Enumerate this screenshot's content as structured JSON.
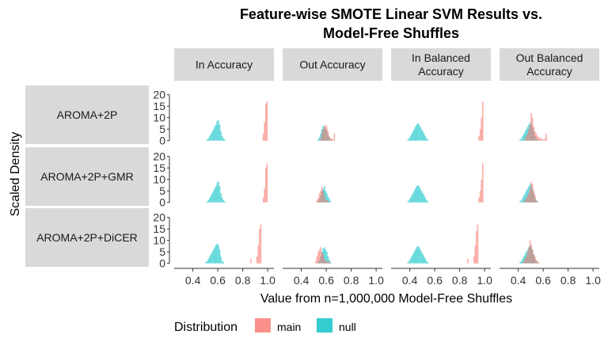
{
  "chart_data": {
    "type": "histogram-facet",
    "title_lines": [
      "Feature-wise SMOTE Linear SVM Results vs.",
      "Model-Free Shuffles"
    ],
    "xlabel": "Value from n=1,000,000 Model-Free Shuffles",
    "ylabel": "Scaled Density",
    "xlim": [
      0.25,
      1.05
    ],
    "ylim": [
      -1.5,
      24
    ],
    "x_ticks": [
      0.4,
      0.6,
      0.8,
      1.0
    ],
    "x_tick_labels": [
      "0.4",
      "0.6",
      "0.8",
      "1.0"
    ],
    "y_ticks": [
      0,
      5,
      10,
      15,
      20
    ],
    "y_tick_labels": [
      "0",
      "5",
      "10",
      "15",
      "20"
    ],
    "columns": [
      {
        "label_lines": [
          "In Accuracy"
        ]
      },
      {
        "label_lines": [
          "Out Accuracy"
        ]
      },
      {
        "label_lines": [
          "In Balanced",
          "Accuracy"
        ]
      },
      {
        "label_lines": [
          "Out Balanced",
          "Accuracy"
        ]
      }
    ],
    "rows": [
      {
        "label": "AROMA+2P"
      },
      {
        "label": "AROMA+2P+GMR"
      },
      {
        "label": "AROMA+2P+DiCER"
      }
    ],
    "legend": {
      "title": "Distribution",
      "position": "bottom",
      "entries": [
        {
          "name": "main",
          "color": "#F8766D"
        },
        {
          "name": "null",
          "color": "#00BFC4"
        }
      ]
    },
    "bin_width": 0.01,
    "panels": [
      [
        {
          "null": {
            "start": 0.51,
            "values": [
              0.5,
              1,
              2,
              3,
              4,
              5,
              6,
              7,
              8.5,
              9,
              7,
              4,
              2,
              1,
              0.5
            ]
          },
          "main": {
            "start": 0.96,
            "values": [
              3,
              8,
              16,
              17
            ]
          }
        },
        {
          "null": {
            "start": 0.53,
            "values": [
              0.5,
              1.5,
              3,
              5,
              6.5,
              6,
              5,
              4.5,
              2.5,
              1.5,
              0.5
            ]
          },
          "main": {
            "start": 0.55,
            "values": [
              1,
              3,
              5,
              6,
              7,
              6,
              4,
              2,
              1,
              1,
              0.5,
              3
            ]
          }
        },
        {
          "null": {
            "start": 0.38,
            "values": [
              0.5,
              1,
              2,
              3,
              4,
              5,
              6,
              7,
              7.5,
              7,
              6,
              5,
              4,
              3,
              2,
              1,
              0.5
            ]
          },
          "main": {
            "start": 0.95,
            "values": [
              2,
              5,
              10,
              17
            ]
          }
        },
        {
          "null": {
            "start": 0.41,
            "values": [
              0.5,
              1,
              2,
              3,
              4,
              5,
              6,
              7,
              8,
              7,
              6,
              4,
              2,
              1,
              0.5
            ]
          },
          "main": {
            "start": 0.45,
            "values": [
              1,
              2,
              3,
              5,
              7,
              12,
              10,
              6,
              4,
              3,
              2,
              1.5,
              1,
              1,
              0.5,
              0.5,
              1,
              3
            ]
          }
        }
      ],
      [
        {
          "null": {
            "start": 0.51,
            "values": [
              0.5,
              1,
              2,
              3,
              4,
              5,
              6,
              7,
              8.5,
              9,
              7,
              4,
              2,
              1,
              0.5
            ]
          },
          "main": {
            "start": 0.96,
            "values": [
              2,
              6,
              15,
              17
            ]
          }
        },
        {
          "null": {
            "start": 0.53,
            "values": [
              0.5,
              1.5,
              3,
              5,
              6,
              7,
              5,
              4,
              2.5,
              1.5,
              0.5
            ]
          },
          "main": {
            "start": 0.52,
            "values": [
              1,
              2,
              4,
              5,
              7,
              5,
              3,
              1,
              1,
              0.5
            ]
          }
        },
        {
          "null": {
            "start": 0.38,
            "values": [
              0.5,
              1,
              2,
              3,
              4,
              5,
              6,
              7,
              7.5,
              7,
              6,
              5,
              4,
              3,
              2,
              1,
              0.5
            ]
          },
          "main": {
            "start": 0.95,
            "values": [
              2,
              5,
              10,
              17
            ]
          }
        },
        {
          "null": {
            "start": 0.41,
            "values": [
              0.5,
              1,
              2,
              3,
              4,
              5,
              6,
              7,
              8,
              7,
              6,
              4,
              2,
              1,
              0.5
            ]
          },
          "main": {
            "start": 0.45,
            "values": [
              1,
              2,
              3,
              4,
              6,
              9,
              8,
              5,
              3,
              1
            ]
          }
        }
      ],
      [
        {
          "null": {
            "start": 0.5,
            "values": [
              0.5,
              1,
              2,
              3,
              4,
              5,
              6,
              7,
              8,
              8.5,
              8,
              6,
              3,
              1,
              0.5
            ]
          },
          "main": {
            "start": 0.86,
            "values": [
              2,
              0,
              0,
              0,
              0,
              3,
              8,
              15,
              17
            ]
          }
        },
        {
          "null": {
            "start": 0.53,
            "values": [
              0.5,
              1.5,
              3,
              5,
              6.5,
              7,
              6,
              5,
              3,
              1.5,
              0.5
            ]
          },
          "main": {
            "start": 0.51,
            "values": [
              1,
              3,
              5,
              6,
              7,
              5,
              4,
              2,
              1,
              1,
              0.5,
              1
            ]
          }
        },
        {
          "null": {
            "start": 0.38,
            "values": [
              0.5,
              1,
              2,
              3,
              4,
              5,
              6,
              7,
              7.5,
              7,
              6,
              5,
              4,
              3,
              2,
              1,
              0.5
            ]
          },
          "main": {
            "start": 0.86,
            "values": [
              2,
              0,
              0,
              0,
              0,
              3,
              8,
              14,
              17
            ]
          }
        },
        {
          "null": {
            "start": 0.41,
            "values": [
              0.5,
              1,
              2,
              3,
              4,
              5,
              6,
              7,
              8,
              7,
              6,
              4,
              2,
              1,
              0.5
            ]
          },
          "main": {
            "start": 0.44,
            "values": [
              1,
              2,
              3,
              5,
              7,
              10,
              8,
              6,
              4,
              3,
              1.5,
              1,
              0.5
            ]
          }
        }
      ]
    ]
  }
}
